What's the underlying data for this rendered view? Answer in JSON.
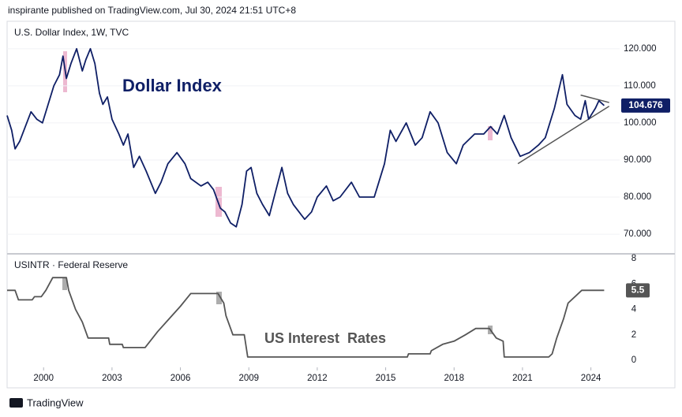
{
  "header": {
    "text": "inspirante published on TradingView.com, Jul 30, 2024 21:51 UTC+8"
  },
  "footer": {
    "brand": "TradingView"
  },
  "chart_data": [
    {
      "type": "line",
      "title": "U.S. Dollar Index, 1W, TVC",
      "annotation": "Dollar Index",
      "color": "#0f1f66",
      "x": [
        1998.4,
        1998.6,
        1998.75,
        1998.95,
        1999.2,
        1999.45,
        1999.7,
        1999.95,
        2000.2,
        2000.45,
        2000.7,
        2000.85,
        2001.0,
        2001.2,
        2001.45,
        2001.7,
        2001.85,
        2002.05,
        2002.25,
        2002.45,
        2002.6,
        2002.8,
        2003.0,
        2003.3,
        2003.5,
        2003.7,
        2003.95,
        2004.2,
        2004.5,
        2004.9,
        2005.15,
        2005.45,
        2005.85,
        2006.2,
        2006.45,
        2006.9,
        2007.2,
        2007.45,
        2007.75,
        2007.95,
        2008.2,
        2008.45,
        2008.7,
        2008.9,
        2009.1,
        2009.35,
        2009.6,
        2009.9,
        2010.15,
        2010.45,
        2010.7,
        2010.95,
        2011.2,
        2011.45,
        2011.75,
        2012.0,
        2012.4,
        2012.7,
        2013.0,
        2013.5,
        2013.85,
        2014.3,
        2014.5,
        2014.7,
        2014.95,
        2015.2,
        2015.45,
        2015.9,
        2016.3,
        2016.6,
        2016.95,
        2017.3,
        2017.7,
        2018.1,
        2018.4,
        2018.9,
        2019.3,
        2019.6,
        2019.9,
        2020.2,
        2020.5,
        2020.9,
        2021.3,
        2021.7,
        2022.0,
        2022.4,
        2022.75,
        2022.95,
        2023.3,
        2023.55,
        2023.75,
        2023.9,
        2024.2,
        2024.35,
        2024.58
      ],
      "values": [
        102,
        98,
        93,
        95,
        99,
        103,
        101,
        100,
        105,
        110,
        113,
        118,
        112,
        116,
        120,
        114,
        117,
        120,
        116,
        108,
        105,
        107,
        101,
        97,
        94,
        97,
        88,
        91,
        87,
        81,
        84,
        89,
        92,
        89,
        85,
        83,
        84,
        82,
        77,
        76,
        73,
        72,
        78,
        87,
        88,
        81,
        78,
        75,
        81,
        88,
        81,
        78,
        76,
        74,
        76,
        80,
        83,
        79,
        80,
        84,
        80,
        80,
        80,
        84,
        89,
        98,
        95,
        100,
        94,
        96,
        103,
        100,
        92,
        89,
        94,
        97,
        97,
        99,
        97,
        102,
        96,
        91,
        92,
        94,
        96,
        104,
        113,
        105,
        102,
        101,
        106,
        101,
        104,
        106,
        104.676
      ],
      "xlim": [
        1998.4,
        2025.26
      ],
      "ylim": [
        64.7,
        127.4
      ],
      "yticks": [
        {
          "value": 120,
          "label": "120.000"
        },
        {
          "value": 110,
          "label": "110.000"
        },
        {
          "value": 100,
          "label": "100.000"
        },
        {
          "value": 90,
          "label": "90.000"
        },
        {
          "value": 80,
          "label": "80.000"
        },
        {
          "value": 70,
          "label": "70.000"
        }
      ],
      "grid": true,
      "badge_color": "#0f1f66",
      "trendlines": [
        {
          "x": [
            2023.55,
            2024.8
          ],
          "values": [
            107.5,
            105.5
          ]
        },
        {
          "x": [
            2020.8,
            2024.8
          ],
          "values": [
            89,
            104.5
          ]
        }
      ]
    },
    {
      "type": "line",
      "title": "USINTR · Federal Reserve",
      "annotation": "US Interest  Rates",
      "color": "#555555",
      "x": [
        1998.4,
        1998.75,
        1998.9,
        1999.5,
        1999.6,
        1999.9,
        2000.1,
        2000.4,
        2001.0,
        2001.1,
        2001.4,
        2001.7,
        2001.95,
        2002.85,
        2002.9,
        2003.45,
        2003.5,
        2004.45,
        2005.0,
        2005.5,
        2006.0,
        2006.45,
        2007.65,
        2007.9,
        2008.0,
        2008.25,
        2008.3,
        2008.8,
        2008.95,
        2015.95,
        2016.0,
        2016.95,
        2017.0,
        2017.5,
        2018.0,
        2018.5,
        2018.95,
        2019.55,
        2019.85,
        2020.15,
        2020.2,
        2022.15,
        2022.3,
        2022.5,
        2022.8,
        2023.0,
        2023.6,
        2024.58
      ],
      "values": [
        5.5,
        5.5,
        4.75,
        4.75,
        5,
        5,
        5.5,
        6.5,
        6.5,
        5.5,
        4,
        3,
        1.75,
        1.75,
        1.25,
        1.25,
        1,
        1,
        2.25,
        3.25,
        4.25,
        5.25,
        5.25,
        4.5,
        3.5,
        2.25,
        2,
        2,
        0.25,
        0.25,
        0.5,
        0.5,
        0.75,
        1.25,
        1.5,
        2,
        2.5,
        2.5,
        1.75,
        1.5,
        0.25,
        0.25,
        0.5,
        1.75,
        3.25,
        4.5,
        5.5,
        5.5
      ],
      "xlim": [
        1998.4,
        2025.26
      ],
      "ylim": [
        -0.56,
        8.375
      ],
      "yticks": [
        8,
        6,
        4,
        2,
        0
      ],
      "xticks": [
        2000,
        2003,
        2006,
        2009,
        2012,
        2015,
        2018,
        2021,
        2024
      ],
      "grid": false,
      "badge_color": "#555555"
    }
  ]
}
